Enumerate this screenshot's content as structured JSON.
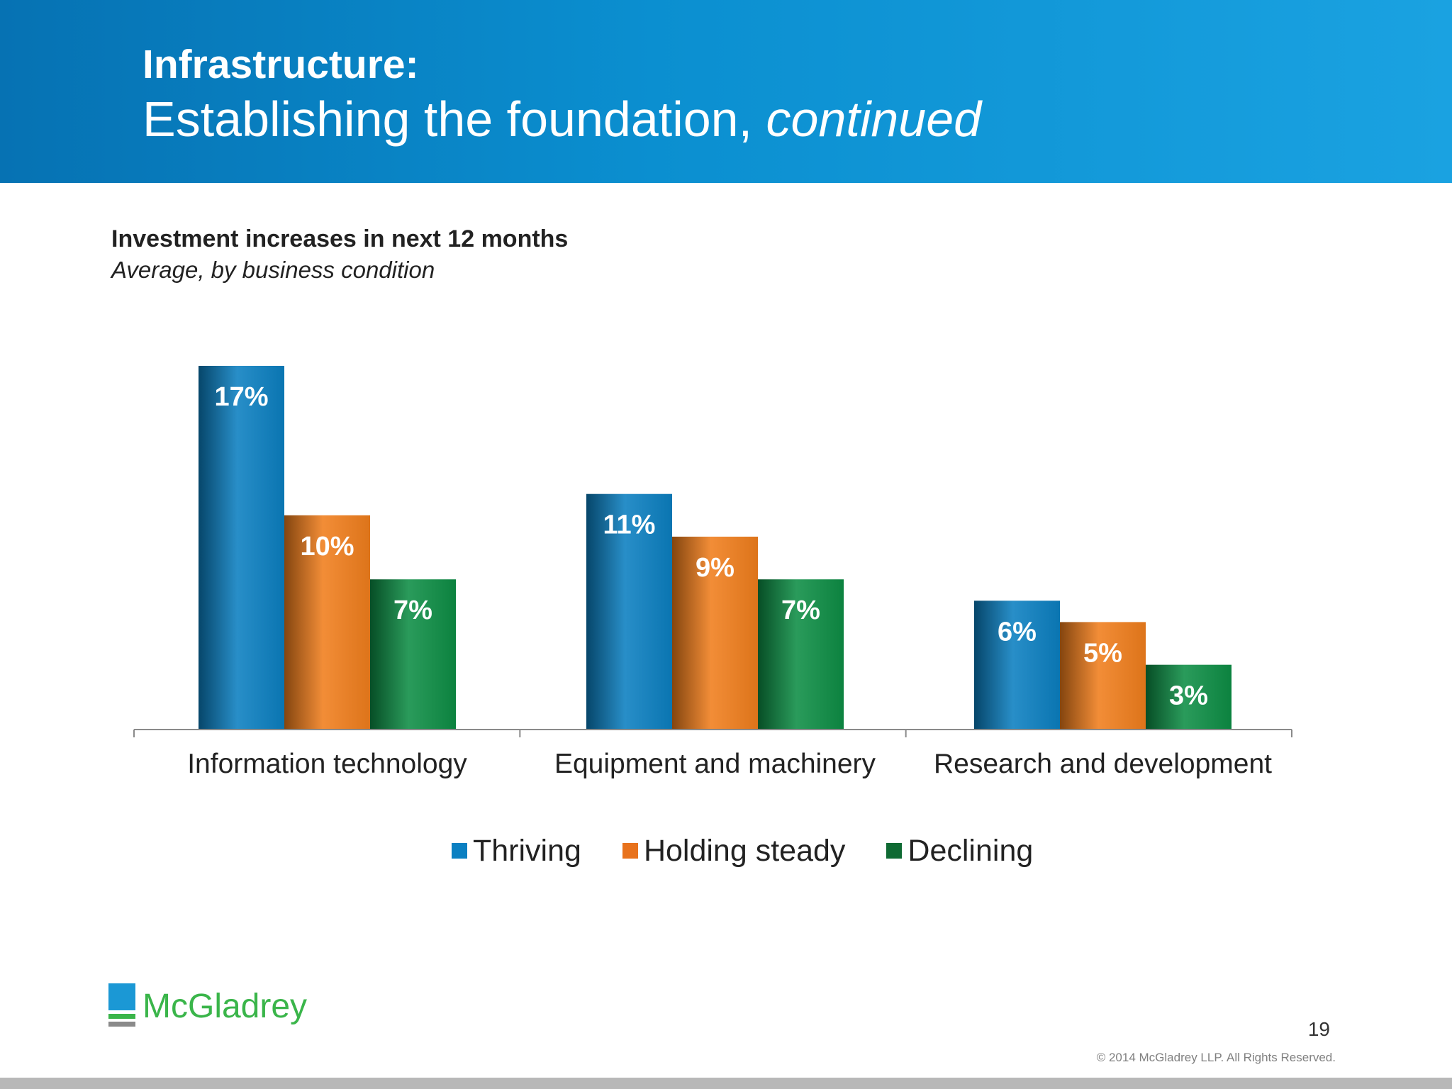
{
  "header": {
    "title": "Infrastructure:",
    "subtitle_main": "Establishing the foundation, ",
    "subtitle_emphasis": "continued"
  },
  "chart_data": {
    "type": "bar",
    "title": "Investment increases in next 12 months",
    "subtitle": "Average, by business condition",
    "categories": [
      "Information technology",
      "Equipment and machinery",
      "Research and development"
    ],
    "series": [
      {
        "name": "Thriving",
        "color": "#0b7fc0",
        "values": [
          17,
          11,
          6
        ],
        "labels": [
          "17%",
          "11%",
          "6%"
        ]
      },
      {
        "name": "Holding steady",
        "color": "#f07e1c",
        "values": [
          10,
          9,
          5
        ],
        "labels": [
          "10%",
          "9%",
          "5%"
        ]
      },
      {
        "name": "Declining",
        "color": "#0d8d45",
        "values": [
          7,
          7,
          3
        ],
        "labels": [
          "7%",
          "7%",
          "3%"
        ]
      }
    ],
    "ylim": [
      0,
      17
    ],
    "grid": false,
    "legend_position": "bottom-center"
  },
  "legend_swatch_colors": [
    "#0b80c2",
    "#e8721c",
    "#0f6a33"
  ],
  "logo": {
    "text": "McGladrey"
  },
  "footer": {
    "page_number": "19",
    "copyright": "© 2014 McGladrey LLP. All Rights Reserved."
  }
}
